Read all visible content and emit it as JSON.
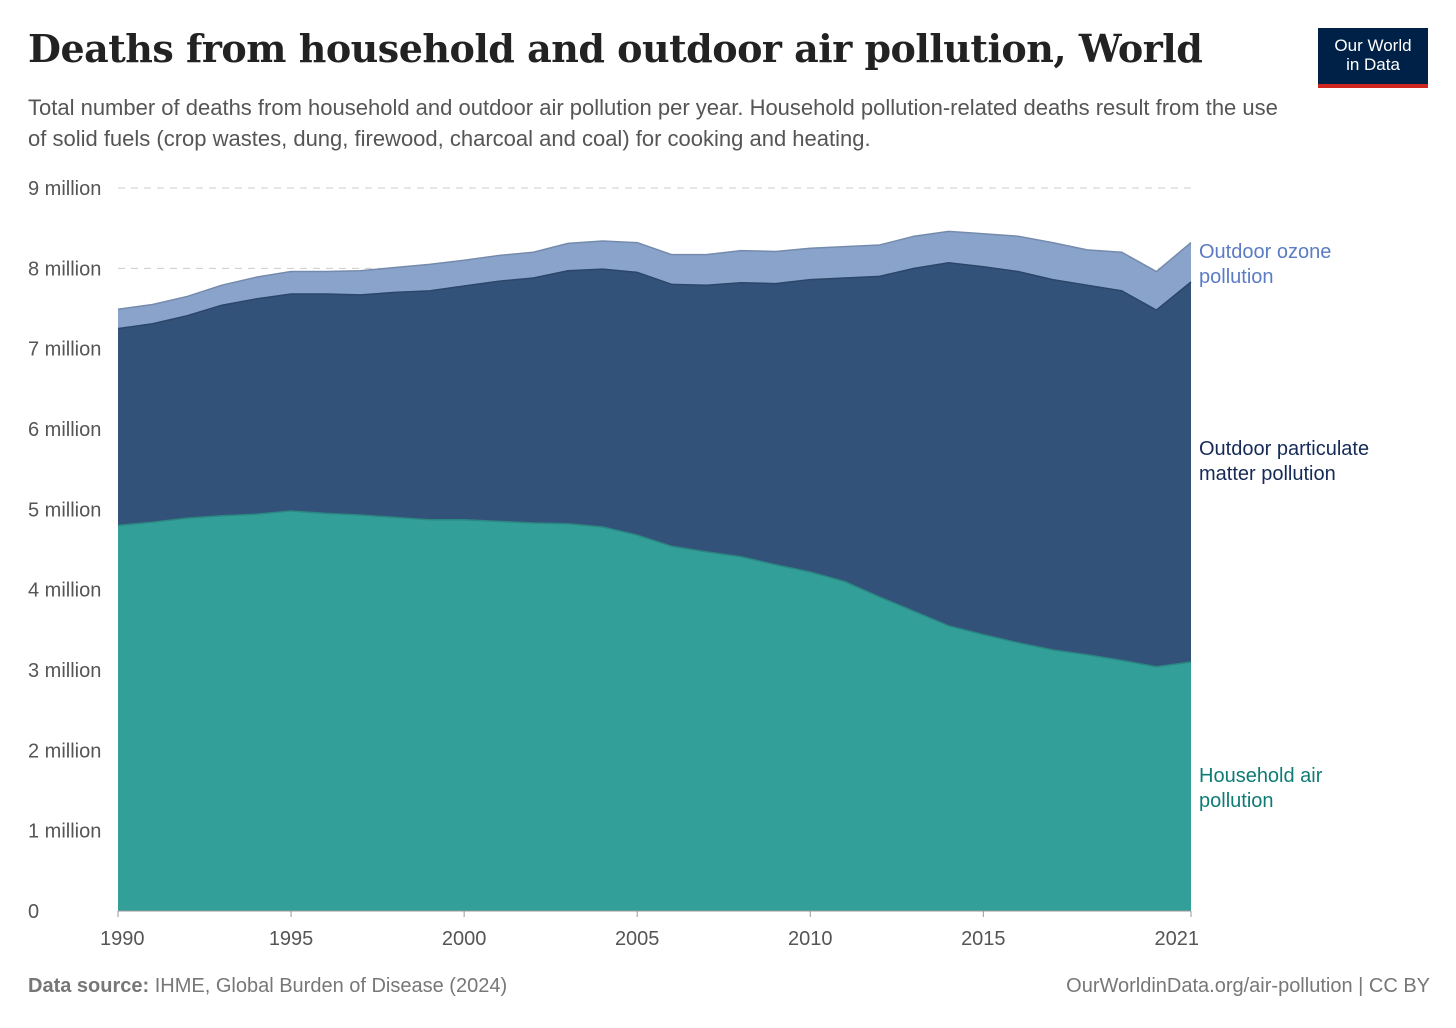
{
  "header": {
    "title": "Deaths from household and outdoor air pollution, World",
    "subtitle": "Total number of deaths from household and outdoor air pollution per year. Household pollution-related deaths result from the use of solid fuels (crop wastes, dung, firewood, charcoal and coal) for cooking and heating.",
    "logo_line1": "Our World",
    "logo_line2": "in Data"
  },
  "footer": {
    "source_label": "Data source:",
    "source_text": "IHME, Global Burden of Disease (2024)",
    "url": "OurWorldinData.org/air-pollution | CC BY"
  },
  "colors": {
    "household": "#339f99",
    "particulate": "#33527a",
    "ozone": "#8aa3cb",
    "household_label": "#0e7c74",
    "particulate_label": "#162a58",
    "ozone_label": "#5b7cc4"
  },
  "chart_data": {
    "type": "area",
    "stacked": true,
    "title": "Deaths from household and outdoor air pollution, World",
    "xlabel": "",
    "ylabel": "",
    "ylim": [
      0,
      9000000
    ],
    "yticks": [
      0,
      1000000,
      2000000,
      3000000,
      4000000,
      5000000,
      6000000,
      7000000,
      8000000,
      9000000
    ],
    "ytick_labels": [
      "0",
      "1 million",
      "2 million",
      "3 million",
      "4 million",
      "5 million",
      "6 million",
      "7 million",
      "8 million",
      "9 million"
    ],
    "xticks": [
      1990,
      1995,
      2000,
      2005,
      2010,
      2015,
      2021
    ],
    "xtick_labels": [
      "1990",
      "1995",
      "2000",
      "2005",
      "2010",
      "2015",
      "2021"
    ],
    "grid": "horizontal-dashed",
    "legend": "right-inline",
    "x": [
      1990,
      1991,
      1992,
      1993,
      1994,
      1995,
      1996,
      1997,
      1998,
      1999,
      2000,
      2001,
      2002,
      2003,
      2004,
      2005,
      2006,
      2007,
      2008,
      2009,
      2010,
      2011,
      2012,
      2013,
      2014,
      2015,
      2016,
      2017,
      2018,
      2019,
      2020,
      2021
    ],
    "series": [
      {
        "name": "Household air pollution",
        "key": "household",
        "label_lines": [
          "Household air",
          "pollution"
        ],
        "values": [
          4.8,
          4.84,
          4.89,
          4.92,
          4.94,
          4.98,
          4.95,
          4.93,
          4.9,
          4.87,
          4.87,
          4.85,
          4.83,
          4.82,
          4.78,
          4.68,
          4.54,
          4.47,
          4.41,
          4.31,
          4.22,
          4.1,
          3.91,
          3.73,
          3.55,
          3.44,
          3.34,
          3.25,
          3.19,
          3.12,
          3.04,
          3.1
        ]
      },
      {
        "name": "Outdoor particulate matter pollution",
        "key": "particulate",
        "label_lines": [
          "Outdoor particulate",
          "matter pollution"
        ],
        "values": [
          2.45,
          2.47,
          2.52,
          2.62,
          2.68,
          2.7,
          2.73,
          2.74,
          2.8,
          2.85,
          2.91,
          2.99,
          3.05,
          3.15,
          3.21,
          3.27,
          3.26,
          3.32,
          3.41,
          3.5,
          3.64,
          3.78,
          3.99,
          4.27,
          4.52,
          4.58,
          4.62,
          4.61,
          4.6,
          4.6,
          4.44,
          4.73
        ]
      },
      {
        "name": "Outdoor ozone pollution",
        "key": "ozone",
        "label_lines": [
          "Outdoor ozone",
          "pollution"
        ],
        "values": [
          0.24,
          0.24,
          0.24,
          0.25,
          0.27,
          0.28,
          0.28,
          0.3,
          0.31,
          0.33,
          0.32,
          0.32,
          0.32,
          0.34,
          0.35,
          0.37,
          0.37,
          0.38,
          0.4,
          0.4,
          0.39,
          0.39,
          0.39,
          0.4,
          0.39,
          0.41,
          0.44,
          0.46,
          0.44,
          0.48,
          0.48,
          0.49
        ]
      }
    ],
    "value_unit": "million deaths"
  }
}
